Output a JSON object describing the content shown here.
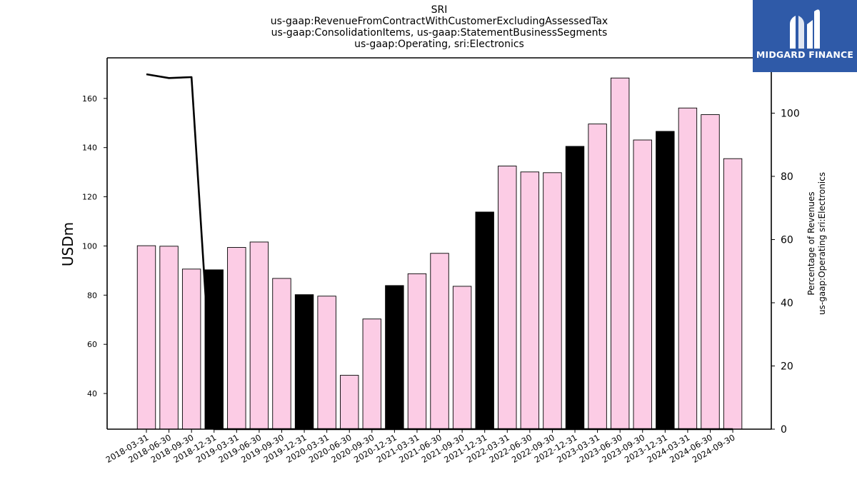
{
  "title_lines": [
    "SRI",
    "us-gaap:RevenueFromContractWithCustomerExcludingAssessedTax",
    "us-gaap:ConsolidationItems, us-gaap:StatementBusinessSegments",
    "us-gaap:Operating, sri:Electronics"
  ],
  "logo": {
    "text": "MIDGARD FINANCE",
    "color": "#2f5aa8"
  },
  "colors": {
    "bar_default": "#fccce5",
    "bar_highlight": "#000000",
    "line": "#000000"
  },
  "chart_data": {
    "type": "bar",
    "categories": [
      "2018-03-31",
      "2018-06-30",
      "2018-09-30",
      "2018-12-31",
      "2019-03-31",
      "2019-06-30",
      "2019-09-30",
      "2019-12-31",
      "2020-03-31",
      "2020-06-30",
      "2020-09-30",
      "2020-12-31",
      "2021-03-31",
      "2021-06-30",
      "2021-09-30",
      "2021-12-31",
      "2022-03-31",
      "2022-06-30",
      "2022-09-30",
      "2022-12-31",
      "2023-03-31",
      "2023-06-30",
      "2023-09-30",
      "2023-12-31",
      "2024-03-31",
      "2024-06-30",
      "2024-09-30"
    ],
    "series": [
      {
        "axis": "left",
        "values": [
          100.1,
          99.9,
          90.6,
          90.3,
          99.4,
          101.6,
          86.8,
          80.2,
          79.6,
          47.4,
          70.3,
          83.9,
          88.7,
          97.0,
          83.6,
          113.8,
          132.5,
          130.1,
          129.8,
          140.5,
          149.6,
          168.3,
          143.1,
          146.6,
          156.1,
          153.4,
          135.5
        ],
        "highlight": [
          false,
          false,
          false,
          true,
          false,
          false,
          false,
          true,
          false,
          false,
          false,
          true,
          false,
          false,
          false,
          true,
          false,
          false,
          false,
          true,
          false,
          false,
          false,
          true,
          false,
          false,
          false
        ]
      },
      {
        "axis": "right",
        "type": "line",
        "values": [
          112.3,
          111.1,
          111.4,
          0,
          0,
          0,
          0,
          0,
          0,
          0,
          0,
          0,
          0,
          0,
          0,
          0,
          0,
          0,
          0,
          0,
          0,
          0,
          0,
          0,
          0,
          0,
          0
        ]
      }
    ],
    "ylabel": "USDm",
    "y2label": [
      "Percentage of Revenues",
      "us-gaap:Operating sri:Electronics"
    ],
    "ylim": [
      25.5,
      176.5
    ],
    "y2lim": [
      0,
      117.5
    ],
    "yticks": [
      40,
      60,
      80,
      100,
      120,
      140,
      160
    ],
    "y2ticks": [
      0,
      20,
      40,
      60,
      80,
      100
    ],
    "grid": false
  }
}
